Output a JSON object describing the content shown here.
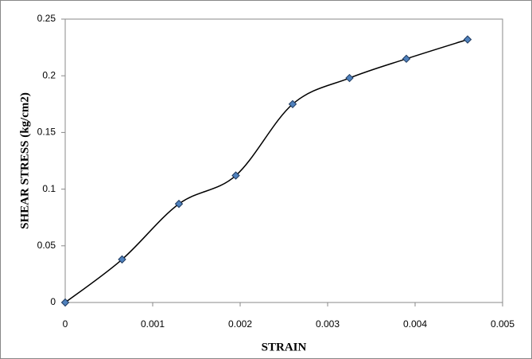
{
  "chart_data": {
    "type": "line",
    "smooth": true,
    "marker": "diamond",
    "x_label": "STRAIN",
    "y_label": "SHEAR STRESS (kg/cm2)",
    "x": [
      0,
      0.00065,
      0.0013,
      0.00195,
      0.0026,
      0.00325,
      0.0039,
      0.0046
    ],
    "values": [
      0,
      0.038,
      0.087,
      0.112,
      0.175,
      0.198,
      0.215,
      0.232
    ],
    "color": "#4f81bd",
    "line_color": "#000000",
    "xlim": [
      0,
      0.005
    ],
    "xticks": [
      0,
      0.001,
      0.002,
      0.003,
      0.004,
      0.005
    ],
    "ylim": [
      0,
      0.25
    ],
    "yticks": [
      0,
      0.05,
      0.1,
      0.15,
      0.2,
      0.25
    ],
    "grid": false
  }
}
